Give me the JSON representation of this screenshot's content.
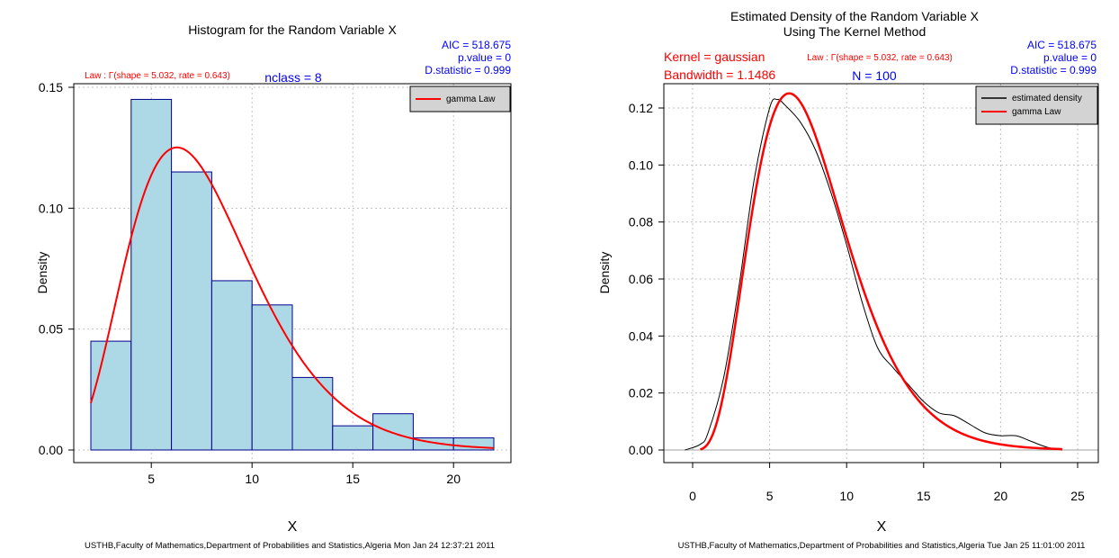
{
  "left": {
    "title": "Histogram for the Random Variable X",
    "law_text": "Law : Γ(shape = 5.032, rate = 0.643)",
    "nclass_text": "nclass = 8",
    "aic_text": "AIC = 518.675",
    "pvalue_text": "p.value = 0",
    "dstat_text": "D.statistic = 0.999",
    "legend": [
      "gamma Law"
    ],
    "xlabel": "X",
    "ylabel": "Density",
    "xticks": [
      "5",
      "10",
      "15",
      "20"
    ],
    "yticks": [
      "0.00",
      "0.05",
      "0.10",
      "0.15"
    ],
    "footer": "USTHB,Faculty of Mathematics,Department of Probabilities and Statistics,Algeria Mon Jan 24 12:37:21 2011"
  },
  "right": {
    "title_line1": "Estimated Density of the Random Variable X",
    "title_line2": "Using The Kernel Method",
    "kernel_text": "Kernel = gaussian",
    "bandwidth_text": "Bandwidth = 1.1486",
    "law_text": "Law : Γ(shape = 5.032, rate = 0.643)",
    "n_text": "N = 100",
    "aic_text": "AIC = 518.675",
    "pvalue_text": "p.value = 0",
    "dstat_text": "D.statistic = 0.999",
    "legend": [
      "estimated density",
      "gamma Law"
    ],
    "xlabel": "X",
    "ylabel": "Density",
    "xticks": [
      "0",
      "5",
      "10",
      "15",
      "20",
      "25"
    ],
    "yticks": [
      "0.00",
      "0.02",
      "0.04",
      "0.06",
      "0.08",
      "0.10",
      "0.12"
    ],
    "footer": "USTHB,Faculty of Mathematics,Department of Probabilities and Statistics,Algeria Tue Jan 25 11:01:00 2011"
  },
  "colors": {
    "hist_fill": "#add8e6",
    "hist_border": "#00008b",
    "gamma_line": "#ff0000",
    "kde_line": "#000000",
    "blue_text": "#0000ff",
    "red_text": "#ff0000",
    "legend_bg": "#d3d3d3",
    "grid": "#c0c0c0"
  },
  "chart_data": [
    {
      "type": "bar",
      "subtype": "histogram",
      "title": "Histogram for the Random Variable X",
      "xlabel": "X",
      "ylabel": "Density",
      "bins": [
        {
          "from": 2,
          "to": 4,
          "density": 0.045
        },
        {
          "from": 4,
          "to": 6,
          "density": 0.145
        },
        {
          "from": 6,
          "to": 8,
          "density": 0.115
        },
        {
          "from": 8,
          "to": 10,
          "density": 0.07
        },
        {
          "from": 10,
          "to": 12,
          "density": 0.06
        },
        {
          "from": 12,
          "to": 14,
          "density": 0.03
        },
        {
          "from": 14,
          "to": 16,
          "density": 0.01
        },
        {
          "from": 16,
          "to": 18,
          "density": 0.015
        },
        {
          "from": 18,
          "to": 20,
          "density": 0.005
        },
        {
          "from": 20,
          "to": 22,
          "density": 0.005
        }
      ],
      "overlay": {
        "name": "gamma Law",
        "distribution": "gamma",
        "shape": 5.032,
        "rate": 0.643,
        "x_range": [
          2,
          22
        ]
      },
      "xlim": [
        2,
        22
      ],
      "ylim": [
        0,
        0.15
      ],
      "grid": true,
      "legend_position": "top-right"
    },
    {
      "type": "line",
      "title": "Estimated Density of the Random Variable X Using The Kernel Method",
      "xlabel": "X",
      "ylabel": "Density",
      "series": [
        {
          "name": "estimated density",
          "x": [
            -0.5,
            0.5,
            1,
            2,
            3,
            4,
            5,
            5.5,
            6,
            7,
            8,
            9,
            10,
            11,
            12,
            13,
            14,
            15,
            16,
            17,
            18,
            19,
            20,
            21,
            22,
            23,
            24
          ],
          "y": [
            0.0,
            0.002,
            0.006,
            0.025,
            0.057,
            0.095,
            0.12,
            0.123,
            0.121,
            0.115,
            0.105,
            0.09,
            0.072,
            0.052,
            0.036,
            0.029,
            0.023,
            0.017,
            0.013,
            0.012,
            0.009,
            0.006,
            0.005,
            0.005,
            0.003,
            0.001,
            0.0
          ]
        },
        {
          "name": "gamma Law",
          "distribution": "gamma",
          "shape": 5.032,
          "rate": 0.643,
          "x_range": [
            0.5,
            24
          ]
        }
      ],
      "xlim": [
        -1,
        25
      ],
      "ylim": [
        0,
        0.125
      ],
      "grid": true,
      "legend_position": "top-right"
    }
  ]
}
